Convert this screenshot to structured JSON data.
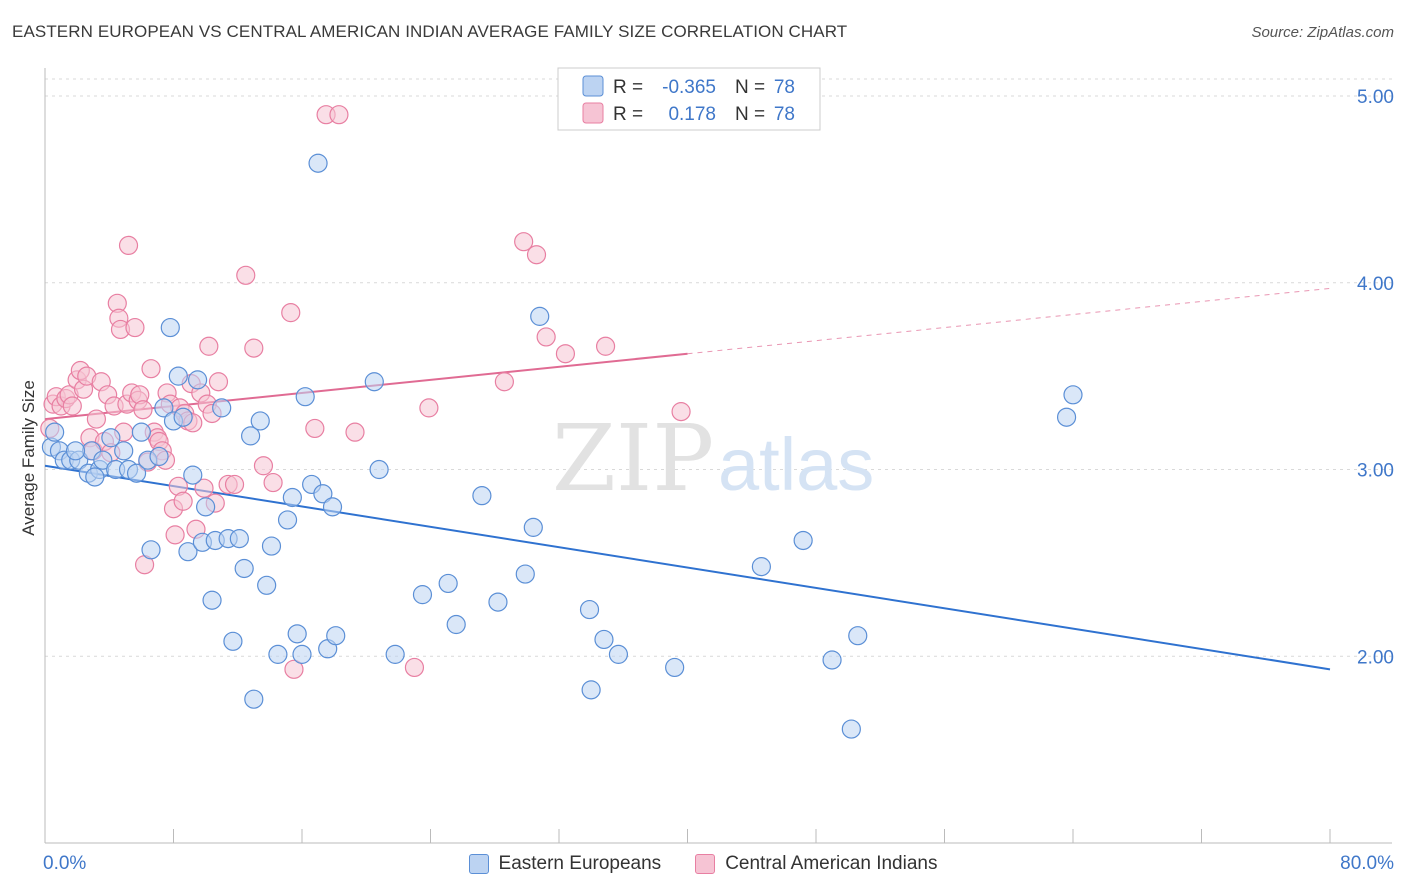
{
  "title": "EASTERN EUROPEAN VS CENTRAL AMERICAN INDIAN AVERAGE FAMILY SIZE CORRELATION CHART",
  "source": "Source: ZipAtlas.com",
  "watermark": {
    "zip": "ZIP",
    "atlas": "atlas"
  },
  "colors": {
    "blue": "#5b8fd6",
    "blue_fill": "#bcd3f2",
    "blue_line": "#2f72d0",
    "pink": "#e87fa2",
    "pink_fill": "#f6c4d4",
    "pink_line": "#e06b93",
    "tick_text": "#3f77c9",
    "grid": "#d9d9d9"
  },
  "legend": {
    "rows": [
      {
        "r_label": "R =",
        "r_value": "-0.365",
        "n_label": "N =",
        "n_value": "78",
        "series": "blue"
      },
      {
        "r_label": "R =",
        "r_value": "0.178",
        "n_label": "N =",
        "n_value": "78",
        "series": "pink"
      }
    ]
  },
  "chart_data": {
    "type": "scatter",
    "title": "EASTERN EUROPEAN VS CENTRAL AMERICAN INDIAN AVERAGE FAMILY SIZE CORRELATION CHART",
    "xlabel": "",
    "ylabel": "Average Family Size",
    "xlim": [
      0,
      80
    ],
    "ylim": [
      1.0,
      5.15
    ],
    "x_tick_labels": [
      "0.0%",
      "80.0%"
    ],
    "y_ticks": [
      2.0,
      3.0,
      4.0,
      5.0
    ],
    "y_tick_labels": [
      "2.00",
      "3.00",
      "4.00",
      "5.00"
    ],
    "grid": true,
    "legend_position": "bottom",
    "series": [
      {
        "name": "Eastern Europeans",
        "color": "#5b8fd6",
        "trend": {
          "x": [
            0,
            80
          ],
          "y": [
            3.02,
            1.93
          ]
        },
        "points": [
          [
            0.4,
            3.12
          ],
          [
            0.9,
            3.1
          ],
          [
            1.2,
            3.05
          ],
          [
            1.6,
            3.05
          ],
          [
            2.1,
            3.05
          ],
          [
            2.7,
            2.98
          ],
          [
            2.9,
            3.1
          ],
          [
            3.4,
            3.0
          ],
          [
            3.6,
            3.05
          ],
          [
            4.1,
            3.17
          ],
          [
            4.4,
            3.0
          ],
          [
            4.9,
            3.1
          ],
          [
            5.2,
            3.0
          ],
          [
            5.7,
            2.98
          ],
          [
            6.0,
            3.2
          ],
          [
            6.4,
            3.05
          ],
          [
            6.6,
            2.57
          ],
          [
            7.1,
            3.07
          ],
          [
            7.4,
            3.33
          ],
          [
            7.8,
            3.76
          ],
          [
            8.0,
            3.26
          ],
          [
            8.3,
            3.5
          ],
          [
            8.6,
            3.28
          ],
          [
            8.9,
            2.56
          ],
          [
            9.2,
            2.97
          ],
          [
            9.5,
            3.48
          ],
          [
            9.8,
            2.61
          ],
          [
            10.0,
            2.8
          ],
          [
            10.4,
            2.3
          ],
          [
            10.6,
            2.62
          ],
          [
            11.0,
            3.33
          ],
          [
            11.4,
            2.63
          ],
          [
            11.7,
            2.08
          ],
          [
            12.1,
            2.63
          ],
          [
            12.4,
            2.47
          ],
          [
            12.8,
            3.18
          ],
          [
            13.0,
            1.77
          ],
          [
            13.4,
            3.26
          ],
          [
            13.8,
            2.38
          ],
          [
            14.1,
            2.59
          ],
          [
            14.5,
            2.01
          ],
          [
            15.1,
            2.73
          ],
          [
            15.4,
            2.85
          ],
          [
            15.7,
            2.12
          ],
          [
            16.0,
            2.01
          ],
          [
            16.2,
            3.39
          ],
          [
            16.6,
            2.92
          ],
          [
            17.0,
            4.64
          ],
          [
            17.3,
            2.87
          ],
          [
            17.6,
            2.04
          ],
          [
            17.9,
            2.8
          ],
          [
            18.1,
            2.11
          ],
          [
            20.5,
            3.47
          ],
          [
            20.8,
            3.0
          ],
          [
            21.8,
            2.01
          ],
          [
            23.5,
            2.33
          ],
          [
            25.1,
            2.39
          ],
          [
            25.6,
            2.17
          ],
          [
            27.2,
            2.86
          ],
          [
            28.2,
            2.29
          ],
          [
            29.9,
            2.44
          ],
          [
            30.4,
            2.69
          ],
          [
            30.8,
            3.82
          ],
          [
            33.9,
            2.25
          ],
          [
            34.0,
            1.82
          ],
          [
            34.8,
            2.09
          ],
          [
            35.7,
            2.01
          ],
          [
            39.2,
            1.94
          ],
          [
            44.6,
            2.48
          ],
          [
            47.2,
            2.62
          ],
          [
            49.0,
            1.98
          ],
          [
            50.2,
            1.61
          ],
          [
            50.6,
            2.11
          ],
          [
            63.6,
            3.28
          ],
          [
            64.0,
            3.4
          ],
          [
            0.6,
            3.2
          ],
          [
            1.9,
            3.1
          ],
          [
            3.1,
            2.96
          ]
        ]
      },
      {
        "name": "Central American Indians",
        "color": "#e87fa2",
        "trend": {
          "x": [
            0,
            40
          ],
          "y": [
            3.27,
            3.62
          ],
          "dashed_to": [
            80,
            3.97
          ]
        },
        "points": [
          [
            0.3,
            3.22
          ],
          [
            0.5,
            3.35
          ],
          [
            0.7,
            3.39
          ],
          [
            1.0,
            3.34
          ],
          [
            1.3,
            3.38
          ],
          [
            1.5,
            3.4
          ],
          [
            1.7,
            3.34
          ],
          [
            2.0,
            3.48
          ],
          [
            2.2,
            3.53
          ],
          [
            2.4,
            3.43
          ],
          [
            2.6,
            3.5
          ],
          [
            2.8,
            3.17
          ],
          [
            3.0,
            3.1
          ],
          [
            3.2,
            3.27
          ],
          [
            3.5,
            3.47
          ],
          [
            3.7,
            3.15
          ],
          [
            3.9,
            3.4
          ],
          [
            4.1,
            3.09
          ],
          [
            4.3,
            3.34
          ],
          [
            4.5,
            3.89
          ],
          [
            4.6,
            3.81
          ],
          [
            4.7,
            3.75
          ],
          [
            4.9,
            3.2
          ],
          [
            5.1,
            3.35
          ],
          [
            5.2,
            4.2
          ],
          [
            5.4,
            3.41
          ],
          [
            5.6,
            3.76
          ],
          [
            5.8,
            3.37
          ],
          [
            5.9,
            3.4
          ],
          [
            6.1,
            3.32
          ],
          [
            6.2,
            2.49
          ],
          [
            6.4,
            3.04
          ],
          [
            6.6,
            3.54
          ],
          [
            6.8,
            3.2
          ],
          [
            7.0,
            3.17
          ],
          [
            7.1,
            3.15
          ],
          [
            7.3,
            3.1
          ],
          [
            7.5,
            3.05
          ],
          [
            7.6,
            3.41
          ],
          [
            7.8,
            3.35
          ],
          [
            8.0,
            2.79
          ],
          [
            8.1,
            2.65
          ],
          [
            8.3,
            2.91
          ],
          [
            8.4,
            3.33
          ],
          [
            8.6,
            2.83
          ],
          [
            8.7,
            3.3
          ],
          [
            8.9,
            3.26
          ],
          [
            9.1,
            3.46
          ],
          [
            9.2,
            3.25
          ],
          [
            9.4,
            2.68
          ],
          [
            9.7,
            3.41
          ],
          [
            9.9,
            2.9
          ],
          [
            10.1,
            3.35
          ],
          [
            10.2,
            3.66
          ],
          [
            10.4,
            3.3
          ],
          [
            10.6,
            2.82
          ],
          [
            10.8,
            3.47
          ],
          [
            11.4,
            2.92
          ],
          [
            11.8,
            2.92
          ],
          [
            12.5,
            4.04
          ],
          [
            13.0,
            3.65
          ],
          [
            13.6,
            3.02
          ],
          [
            14.2,
            2.93
          ],
          [
            15.3,
            3.84
          ],
          [
            15.5,
            1.93
          ],
          [
            16.8,
            3.22
          ],
          [
            17.5,
            4.9
          ],
          [
            18.3,
            4.9
          ],
          [
            19.3,
            3.2
          ],
          [
            23.0,
            1.94
          ],
          [
            23.9,
            3.33
          ],
          [
            28.6,
            3.47
          ],
          [
            29.8,
            4.22
          ],
          [
            30.6,
            4.15
          ],
          [
            31.2,
            3.71
          ],
          [
            32.4,
            3.62
          ],
          [
            34.9,
            3.66
          ],
          [
            39.6,
            3.31
          ]
        ]
      }
    ]
  },
  "bottom_legend": {
    "items": [
      {
        "label": "Eastern Europeans",
        "series": "blue"
      },
      {
        "label": "Central American Indians",
        "series": "pink"
      }
    ]
  }
}
